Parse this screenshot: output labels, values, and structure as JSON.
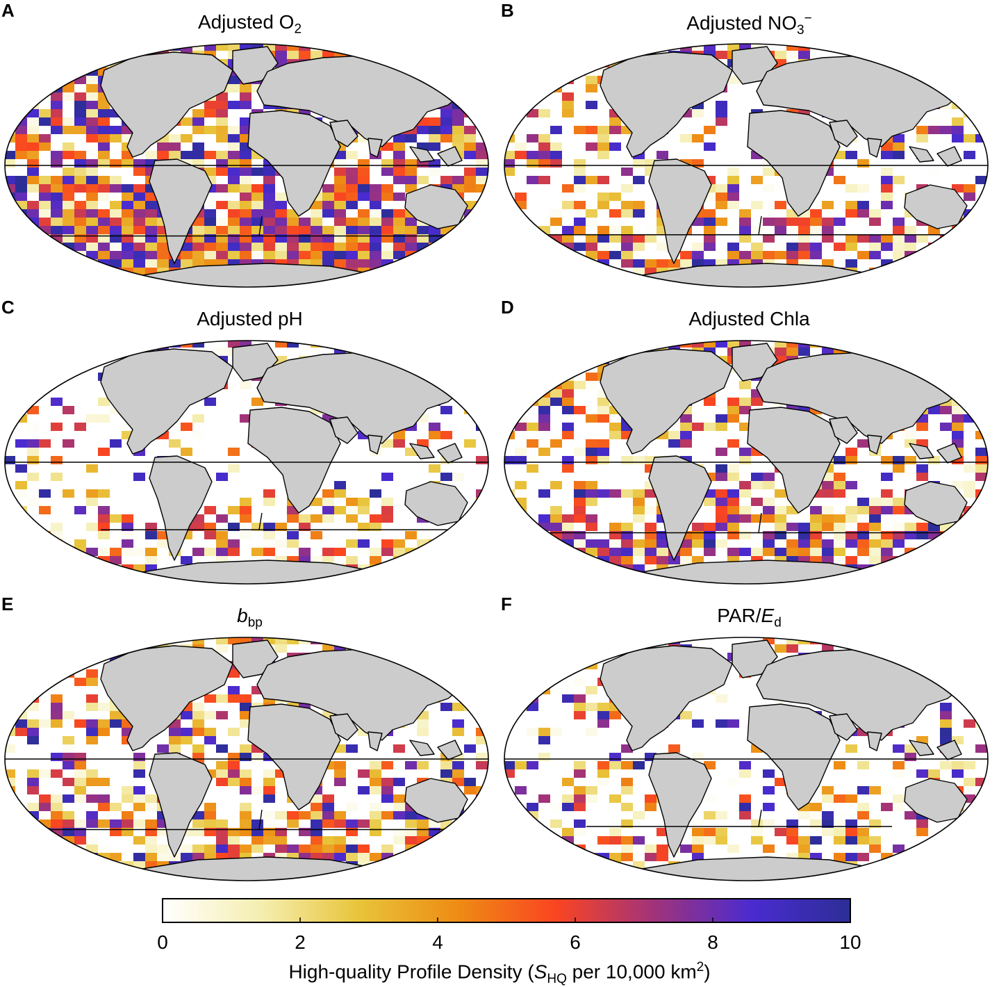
{
  "panels": [
    {
      "letter": "A",
      "title_main": "Adjusted O",
      "title_sub": "2",
      "title_sup": "",
      "title_tail": "",
      "density": 0.95,
      "south_line_frac": 0.32,
      "seed": 11
    },
    {
      "letter": "B",
      "title_main": "Adjusted NO",
      "title_sub": "3",
      "title_sup": "−",
      "title_tail": "",
      "density": 0.55,
      "south_line_frac": 0.28,
      "seed": 23
    },
    {
      "letter": "C",
      "title_main": "Adjusted pH",
      "title_sub": "",
      "title_sup": "",
      "title_tail": "",
      "density": 0.35,
      "south_line_frac": 0.22,
      "seed": 37
    },
    {
      "letter": "D",
      "title_main": "Adjusted Chla",
      "title_sub": "",
      "title_sup": "",
      "title_tail": "",
      "density": 0.65,
      "south_line_frac": 0.32,
      "seed": 41
    },
    {
      "letter": "E",
      "title_main": "b",
      "title_sub": "bp",
      "title_sup": "",
      "title_tail": "",
      "title_italic": true,
      "density": 0.6,
      "south_line_frac": 0.32,
      "seed": 53
    },
    {
      "letter": "F",
      "title_main": "PAR/",
      "title_sub": "",
      "title_sup": "",
      "title_tail": "E",
      "title_tail_sub": "d",
      "density": 0.35,
      "south_line_frac": 0.22,
      "seed": 67
    }
  ],
  "colorbar": {
    "ticks": [
      "0",
      "2",
      "4",
      "6",
      "8",
      "10"
    ],
    "min": 0,
    "max": 10,
    "colors": [
      "#ffffff",
      "#f5eeb0",
      "#e8c43a",
      "#ee8c14",
      "#fa4521",
      "#a1337a",
      "#4a2bd0",
      "#2c2e96"
    ],
    "label_main": "High-quality Profile Density (",
    "label_italic": "S",
    "label_sub": "HQ",
    "label_mid": " per 10,000 km",
    "label_sup": "2",
    "label_end": ")"
  }
}
